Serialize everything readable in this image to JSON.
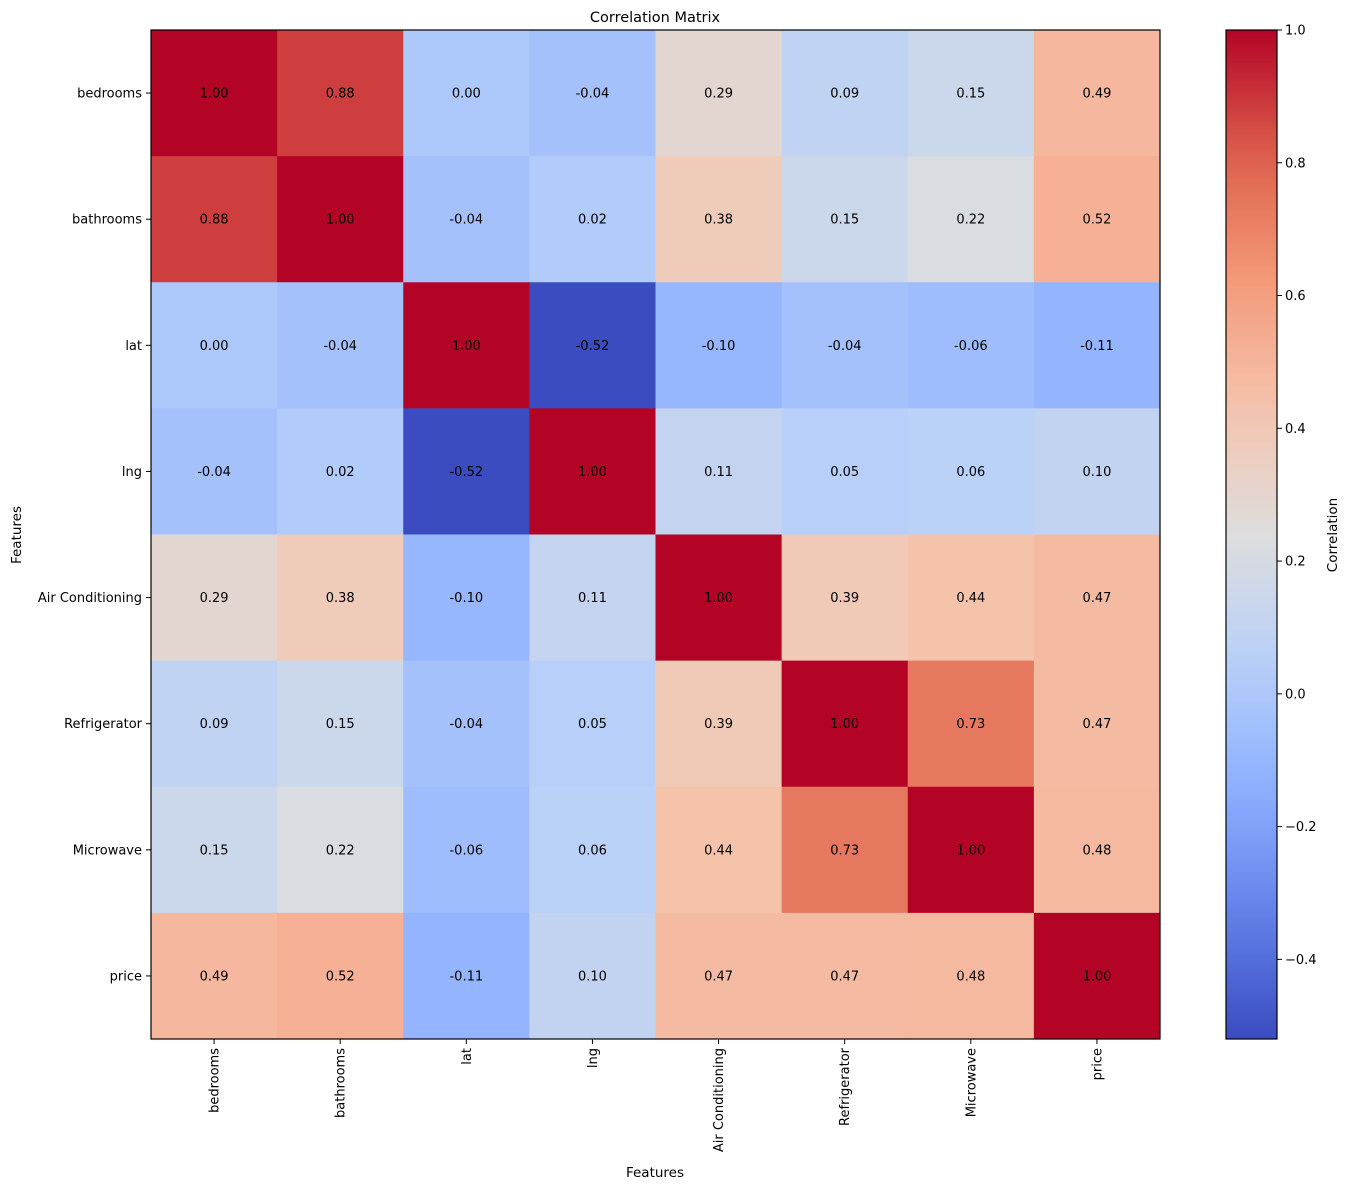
{
  "chart_data": {
    "type": "heatmap",
    "title": "Correlation Matrix",
    "xlabel": "Features",
    "ylabel": "Features",
    "x_categories": [
      "bedrooms",
      "bathrooms",
      "lat",
      "lng",
      "Air Conditioning",
      "Refrigerator",
      "Microwave",
      "price"
    ],
    "y_categories": [
      "bedrooms",
      "bathrooms",
      "lat",
      "lng",
      "Air Conditioning",
      "Refrigerator",
      "Microwave",
      "price"
    ],
    "values": [
      [
        1.0,
        0.88,
        0.0,
        -0.04,
        0.29,
        0.09,
        0.15,
        0.49
      ],
      [
        0.88,
        1.0,
        -0.04,
        0.02,
        0.38,
        0.15,
        0.22,
        0.52
      ],
      [
        0.0,
        -0.04,
        1.0,
        -0.52,
        -0.1,
        -0.04,
        -0.06,
        -0.11
      ],
      [
        -0.04,
        0.02,
        -0.52,
        1.0,
        0.11,
        0.05,
        0.06,
        0.1
      ],
      [
        0.29,
        0.38,
        -0.1,
        0.11,
        1.0,
        0.39,
        0.44,
        0.47
      ],
      [
        0.09,
        0.15,
        -0.04,
        0.05,
        0.39,
        1.0,
        0.73,
        0.47
      ],
      [
        0.15,
        0.22,
        -0.06,
        0.06,
        0.44,
        0.73,
        1.0,
        0.48
      ],
      [
        0.49,
        0.52,
        -0.11,
        0.1,
        0.47,
        0.47,
        0.48,
        1.0
      ]
    ],
    "colormap": "coolwarm",
    "vmin": -0.52,
    "vmax": 1.0,
    "value_format": "2 decimals",
    "colorbar": {
      "label": "Correlation",
      "ticks": [
        1.0,
        0.8,
        0.6,
        0.4,
        0.2,
        0.0,
        -0.2,
        -0.4
      ],
      "tick_labels": [
        "1.0",
        "0.8",
        "0.6",
        "0.4",
        "0.2",
        "0.0",
        "−0.2",
        "−0.4"
      ],
      "placement": "right"
    },
    "grid": false
  }
}
